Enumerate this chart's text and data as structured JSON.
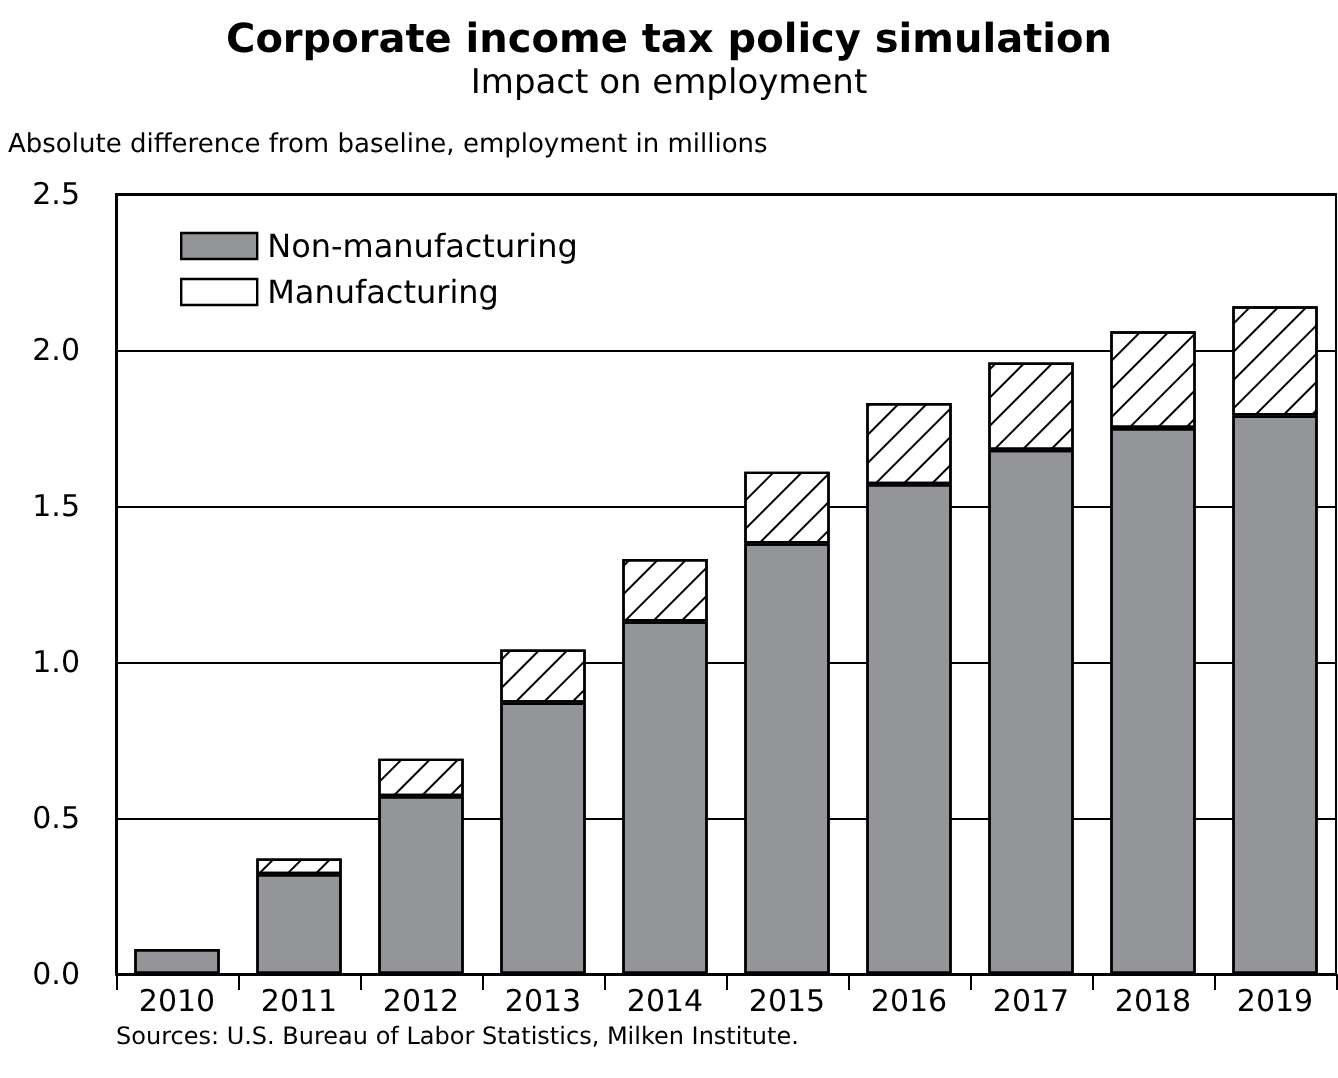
{
  "chart_data": {
    "type": "bar",
    "title": "Corporate income tax policy simulation",
    "subtitle": "Impact on employment",
    "ylabel": "Absolute difference from baseline, employment in millions",
    "categories": [
      "2010",
      "2011",
      "2012",
      "2013",
      "2014",
      "2015",
      "2016",
      "2017",
      "2018",
      "2019"
    ],
    "series": [
      {
        "name": "Non-manufacturing",
        "color": "#939598",
        "values": [
          0.08,
          0.32,
          0.57,
          0.87,
          1.13,
          1.38,
          1.57,
          1.68,
          1.75,
          1.79
        ]
      },
      {
        "name": "Manufacturing",
        "color": "#ffffff",
        "values": [
          0,
          0.05,
          0.12,
          0.17,
          0.2,
          0.23,
          0.26,
          0.28,
          0.31,
          0.35
        ]
      }
    ],
    "stacked": true,
    "ylim": [
      0,
      2.5
    ],
    "yticks": [
      {
        "value": 0,
        "label": "0.0"
      },
      0.5,
      {
        "value": 1,
        "label": "1.0"
      },
      1.5,
      {
        "value": 2,
        "label": "2.0"
      },
      2.5
    ],
    "grid": "y",
    "legend": "top left",
    "annotations": [
      "Sources: U.S. Bureau of Labor Statistics, Milken Institute."
    ]
  }
}
